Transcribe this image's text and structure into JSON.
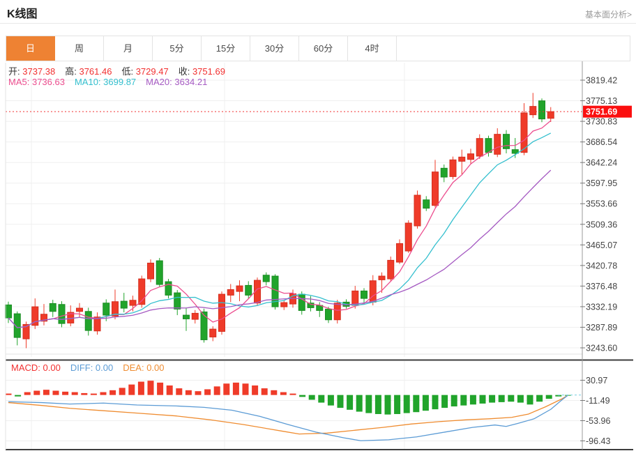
{
  "header": {
    "title": "K线图",
    "link": "基本面分析>"
  },
  "tabs": {
    "selected": "日",
    "items": [
      "日",
      "周",
      "月",
      "5分",
      "15分",
      "30分",
      "60分",
      "4时"
    ]
  },
  "ohlc_legend": [
    {
      "label": "开:",
      "value": "3737.38"
    },
    {
      "label": "高:",
      "value": "3761.46"
    },
    {
      "label": "低:",
      "value": "3729.47"
    },
    {
      "label": "收:",
      "value": "3751.69"
    }
  ],
  "ma_legend": [
    {
      "label": "MA5:",
      "value": "3736.63",
      "color": "#ec4d8e"
    },
    {
      "label": "MA10:",
      "value": "3699.87",
      "color": "#33bfce"
    },
    {
      "label": "MA20:",
      "value": "3634.21",
      "color": "#a55ac2"
    }
  ],
  "macd_legend": [
    {
      "label": "MACD:",
      "value": "0.00",
      "color": "#f23030"
    },
    {
      "label": "DIFF:",
      "value": "0.00",
      "color": "#5b9bd5"
    },
    {
      "label": "DEA:",
      "value": "0.00",
      "color": "#ef8c30"
    }
  ],
  "colors": {
    "up": "#ef3b29",
    "up_stroke": "#d42f1e",
    "down": "#21a42b",
    "down_stroke": "#1b8c24",
    "ma5": "#ec4d8e",
    "ma10": "#33bfce",
    "ma20": "#a55ac2",
    "diff": "#5b9bd5",
    "dea": "#ef8c30",
    "grid": "#efefef",
    "axis": "#999999",
    "dark_border": "#3c3c3c",
    "tick_text": "#444444",
    "value_red": "#f23030",
    "price_flag_bg": "#fb0f0f",
    "price_flag_text": "#ffffff",
    "dashed_end": "#8fd8e8"
  },
  "chart_data": {
    "type": "candlestick",
    "panels": [
      "price+MA",
      "MACD"
    ],
    "price_panel": {
      "y_ticks": [
        "3819.42",
        "3775.13",
        "3730.83",
        "3686.54",
        "3642.24",
        "3597.95",
        "3553.66",
        "3509.36",
        "3465.07",
        "3420.78",
        "3376.48",
        "3332.19",
        "3287.89",
        "3243.60"
      ],
      "current_price": "3751.69",
      "ma_periods": [
        5,
        10,
        20
      ],
      "ohlc_columns": [
        "open",
        "high",
        "low",
        "close"
      ],
      "candles": [
        [
          3336,
          3343,
          3297,
          3308
        ],
        [
          3317,
          3322,
          3249,
          3266
        ],
        [
          3263,
          3300,
          3243,
          3294
        ],
        [
          3292,
          3350,
          3284,
          3332
        ],
        [
          3301,
          3338,
          3292,
          3316
        ],
        [
          3339,
          3347,
          3310,
          3322
        ],
        [
          3337,
          3344,
          3288,
          3296
        ],
        [
          3297,
          3335,
          3290,
          3320
        ],
        [
          3322,
          3340,
          3308,
          3329
        ],
        [
          3322,
          3330,
          3270,
          3281
        ],
        [
          3280,
          3320,
          3272,
          3310
        ],
        [
          3340,
          3348,
          3301,
          3314
        ],
        [
          3312,
          3369,
          3305,
          3343
        ],
        [
          3344,
          3362,
          3320,
          3329
        ],
        [
          3335,
          3356,
          3322,
          3346
        ],
        [
          3337,
          3399,
          3330,
          3392
        ],
        [
          3392,
          3434,
          3385,
          3426
        ],
        [
          3431,
          3437,
          3375,
          3380
        ],
        [
          3386,
          3392,
          3350,
          3357
        ],
        [
          3362,
          3368,
          3314,
          3327
        ],
        [
          3314,
          3330,
          3280,
          3306
        ],
        [
          3305,
          3325,
          3296,
          3318
        ],
        [
          3321,
          3328,
          3255,
          3261
        ],
        [
          3267,
          3290,
          3258,
          3284
        ],
        [
          3279,
          3365,
          3272,
          3359
        ],
        [
          3357,
          3381,
          3342,
          3369
        ],
        [
          3365,
          3389,
          3344,
          3377
        ],
        [
          3378,
          3387,
          3350,
          3357
        ],
        [
          3340,
          3395,
          3334,
          3389
        ],
        [
          3400,
          3406,
          3378,
          3386
        ],
        [
          3398,
          3402,
          3326,
          3332
        ],
        [
          3332,
          3345,
          3325,
          3341
        ],
        [
          3338,
          3369,
          3330,
          3360
        ],
        [
          3359,
          3365,
          3315,
          3324
        ],
        [
          3340,
          3355,
          3322,
          3330
        ],
        [
          3335,
          3342,
          3310,
          3324
        ],
        [
          3327,
          3332,
          3297,
          3304
        ],
        [
          3304,
          3347,
          3296,
          3340
        ],
        [
          3342,
          3348,
          3328,
          3333
        ],
        [
          3335,
          3377,
          3328,
          3366
        ],
        [
          3366,
          3372,
          3340,
          3350
        ],
        [
          3342,
          3400,
          3335,
          3388
        ],
        [
          3390,
          3406,
          3362,
          3398
        ],
        [
          3392,
          3440,
          3386,
          3432
        ],
        [
          3428,
          3477,
          3424,
          3468
        ],
        [
          3452,
          3518,
          3448,
          3512
        ],
        [
          3506,
          3582,
          3500,
          3572
        ],
        [
          3562,
          3570,
          3538,
          3544
        ],
        [
          3550,
          3648,
          3546,
          3622
        ],
        [
          3630,
          3638,
          3600,
          3611
        ],
        [
          3612,
          3655,
          3606,
          3648
        ],
        [
          3645,
          3670,
          3617,
          3654
        ],
        [
          3649,
          3672,
          3640,
          3661
        ],
        [
          3656,
          3703,
          3650,
          3694
        ],
        [
          3694,
          3700,
          3655,
          3664
        ],
        [
          3660,
          3716,
          3654,
          3703
        ],
        [
          3703,
          3712,
          3662,
          3672
        ],
        [
          3670,
          3695,
          3652,
          3662
        ],
        [
          3664,
          3770,
          3658,
          3749
        ],
        [
          3745,
          3792,
          3738,
          3763
        ],
        [
          3775,
          3780,
          3729,
          3736
        ],
        [
          3737.38,
          3761.46,
          3729.47,
          3751.69
        ]
      ]
    },
    "macd_panel": {
      "y_ticks": [
        "30.97",
        "-11.49",
        "-53.96",
        "-96.43"
      ],
      "histogram": [
        3,
        -3,
        6,
        9,
        11,
        9,
        7,
        6,
        4,
        3,
        6,
        10,
        15,
        22,
        28,
        30,
        26,
        20,
        14,
        10,
        8,
        12,
        18,
        24,
        26,
        24,
        20,
        14,
        10,
        6,
        3,
        -4,
        -10,
        -16,
        -22,
        -27,
        -31,
        -35,
        -38,
        -40,
        -41,
        -40,
        -38,
        -36,
        -33,
        -30,
        -27,
        -24,
        -22,
        -20,
        -18,
        -16,
        -15,
        -14,
        -16,
        -20,
        -14,
        -8,
        -3,
        -1
      ],
      "diff_line": [
        [
          0,
          -14
        ],
        [
          0.06,
          -16
        ],
        [
          0.11,
          -19
        ],
        [
          0.17,
          -17
        ],
        [
          0.23,
          -21
        ],
        [
          0.3,
          -23
        ],
        [
          0.35,
          -26
        ],
        [
          0.4,
          -32
        ],
        [
          0.45,
          -45
        ],
        [
          0.5,
          -62
        ],
        [
          0.55,
          -78
        ],
        [
          0.6,
          -90
        ],
        [
          0.63,
          -96
        ],
        [
          0.68,
          -94
        ],
        [
          0.73,
          -88
        ],
        [
          0.78,
          -78
        ],
        [
          0.83,
          -68
        ],
        [
          0.87,
          -63
        ],
        [
          0.89,
          -66
        ],
        [
          0.91,
          -60
        ],
        [
          0.94,
          -50
        ],
        [
          0.97,
          -30
        ],
        [
          0.99,
          -10
        ],
        [
          1,
          -1
        ]
      ],
      "dea_line": [
        [
          0,
          -16
        ],
        [
          0.06,
          -22
        ],
        [
          0.11,
          -28
        ],
        [
          0.17,
          -33
        ],
        [
          0.23,
          -38
        ],
        [
          0.3,
          -44
        ],
        [
          0.36,
          -52
        ],
        [
          0.42,
          -62
        ],
        [
          0.49,
          -76
        ],
        [
          0.52,
          -82
        ],
        [
          0.57,
          -80
        ],
        [
          0.62,
          -74
        ],
        [
          0.67,
          -68
        ],
        [
          0.72,
          -61
        ],
        [
          0.77,
          -56
        ],
        [
          0.82,
          -52
        ],
        [
          0.86,
          -50
        ],
        [
          0.9,
          -47
        ],
        [
          0.93,
          -40
        ],
        [
          0.96,
          -25
        ],
        [
          0.99,
          -8
        ],
        [
          1,
          -1
        ]
      ]
    }
  }
}
